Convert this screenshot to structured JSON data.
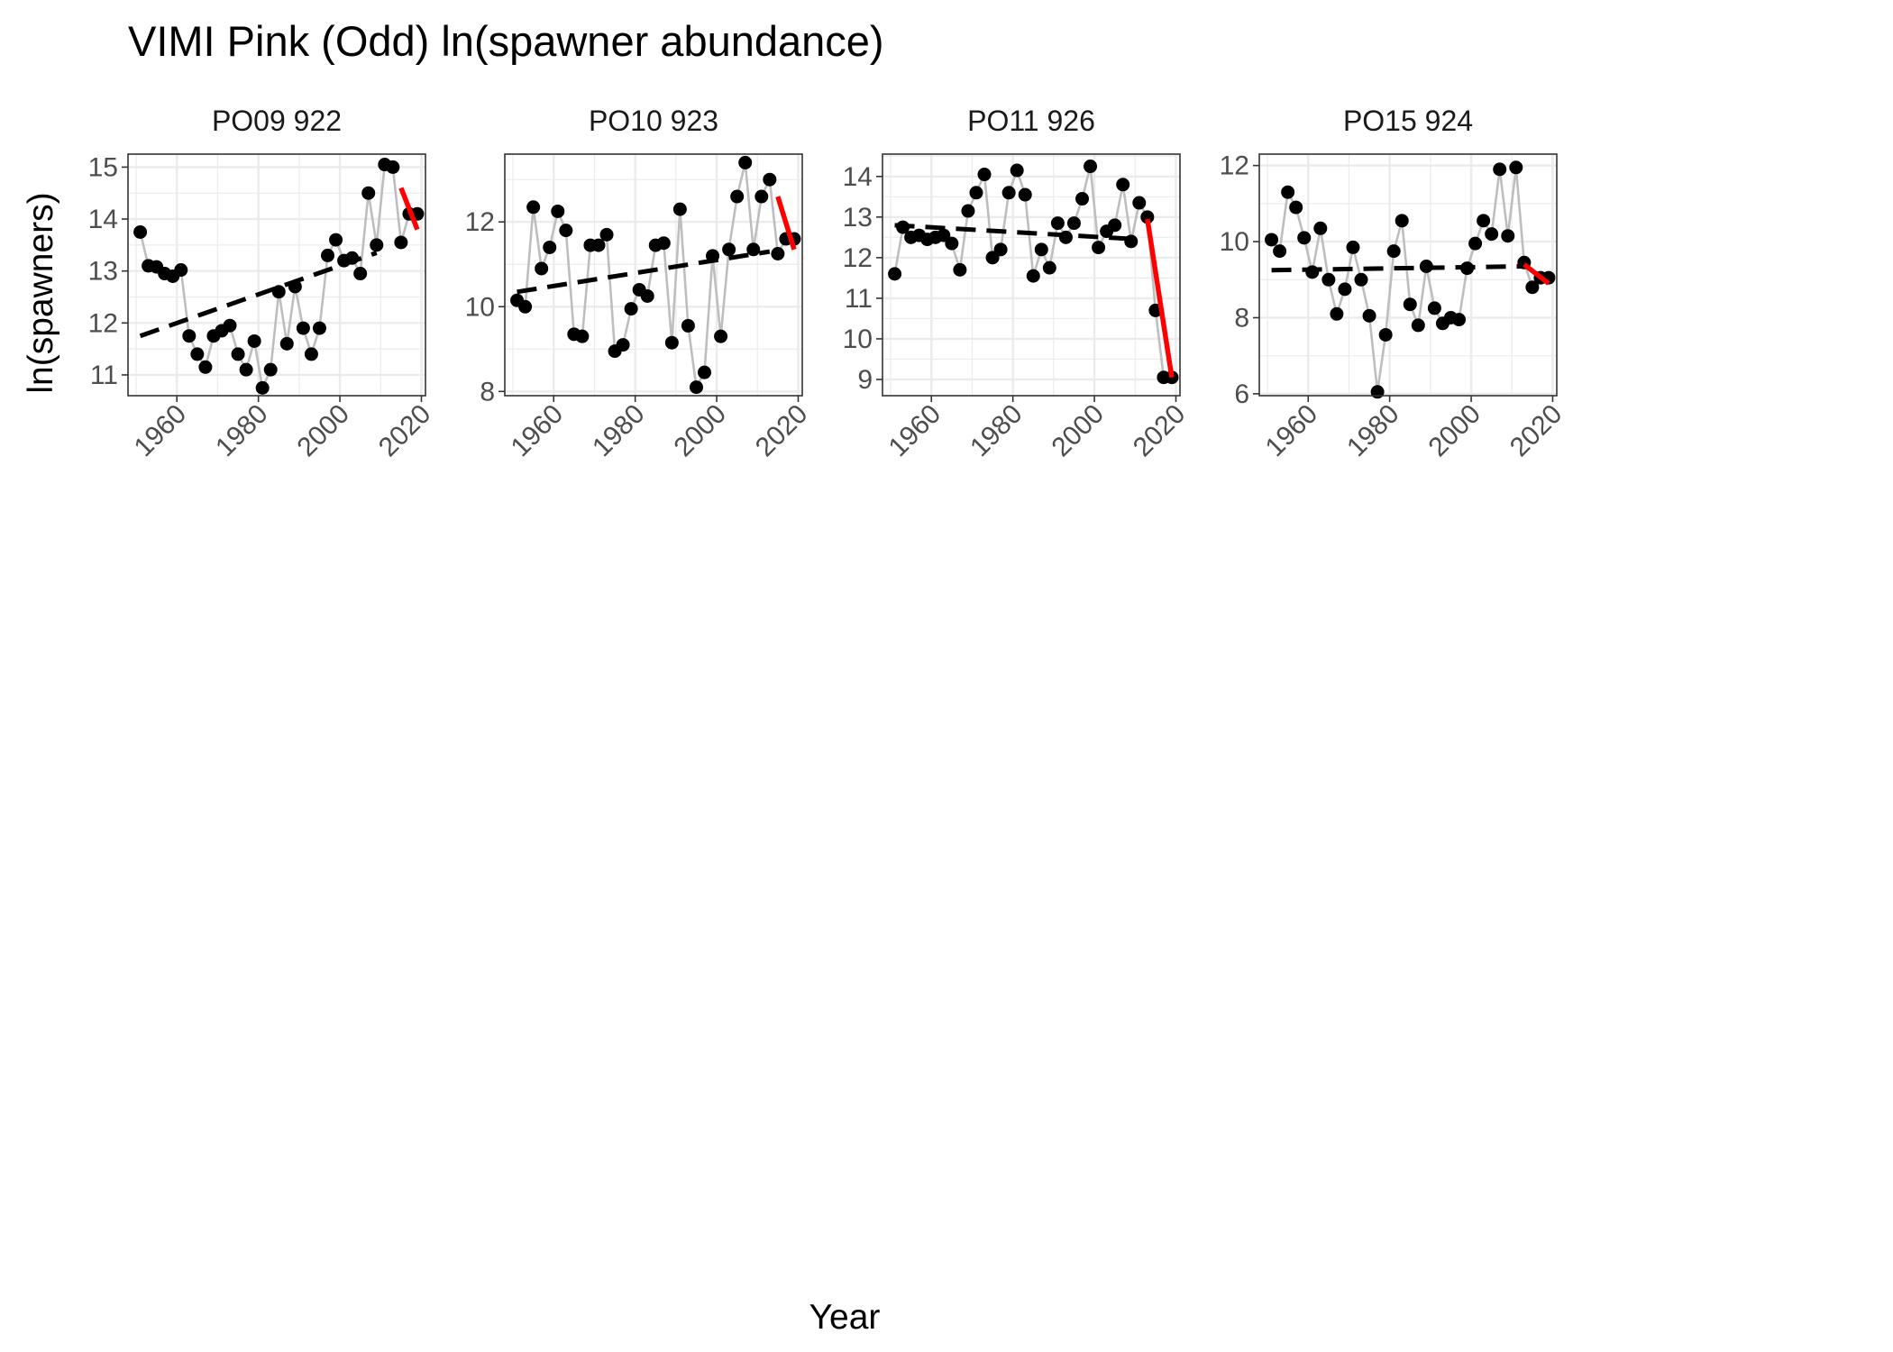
{
  "figure": {
    "title": "VIMI Pink (Odd) ln(spawner abundance)",
    "xlabel": "Year",
    "ylabel": "ln(spawners)"
  },
  "colors": {
    "points": "#000000",
    "connector": "#bebebe",
    "trend_long": "#000000",
    "trend_recent": "#ff0000",
    "grid": "#ebebeb",
    "panel_border": "#333333"
  },
  "chart_data": [
    {
      "type": "line",
      "panel": "PO09 922",
      "xlim": [
        1948,
        2021
      ],
      "ylim": [
        10.6,
        15.25
      ],
      "x_ticks": [
        1960,
        1980,
        2000,
        2020
      ],
      "y_ticks": [
        11,
        12,
        13,
        14,
        15
      ],
      "grid": true,
      "x": [
        1951,
        1953,
        1955,
        1957,
        1959,
        1961,
        1963,
        1965,
        1967,
        1969,
        1971,
        1973,
        1975,
        1977,
        1979,
        1981,
        1983,
        1985,
        1987,
        1989,
        1991,
        1993,
        1995,
        1997,
        1999,
        2001,
        2003,
        2005,
        2007,
        2009,
        2011,
        2013,
        2015,
        2017,
        2019
      ],
      "y": [
        13.75,
        13.1,
        13.08,
        12.95,
        12.9,
        13.02,
        11.75,
        11.4,
        11.15,
        11.75,
        11.85,
        11.95,
        11.4,
        11.1,
        11.65,
        10.75,
        11.1,
        12.6,
        11.6,
        12.7,
        11.9,
        11.4,
        11.9,
        13.3,
        13.6,
        13.2,
        13.25,
        12.95,
        14.5,
        13.5,
        15.05,
        15.0,
        13.55,
        14.1,
        14.1
      ],
      "trend_long": {
        "x": [
          1951,
          2009
        ],
        "y": [
          11.75,
          13.35
        ]
      },
      "trend_recent": {
        "x": [
          2015,
          2019
        ],
        "y": [
          14.6,
          13.8
        ]
      }
    },
    {
      "type": "line",
      "panel": "PO10 923",
      "xlim": [
        1948,
        2021
      ],
      "ylim": [
        7.9,
        13.6
      ],
      "x_ticks": [
        1960,
        1980,
        2000,
        2020
      ],
      "y_ticks": [
        8,
        10,
        12
      ],
      "grid": true,
      "x": [
        1951,
        1953,
        1955,
        1957,
        1959,
        1961,
        1963,
        1965,
        1967,
        1969,
        1971,
        1973,
        1975,
        1977,
        1979,
        1981,
        1983,
        1985,
        1987,
        1989,
        1991,
        1993,
        1995,
        1997,
        1999,
        2001,
        2003,
        2005,
        2007,
        2009,
        2011,
        2013,
        2015,
        2017,
        2019
      ],
      "y": [
        10.15,
        10.0,
        12.35,
        10.9,
        11.4,
        12.25,
        11.8,
        9.35,
        9.3,
        11.45,
        11.45,
        11.7,
        8.95,
        9.1,
        9.95,
        10.4,
        10.25,
        11.45,
        11.5,
        9.15,
        12.3,
        9.55,
        8.1,
        8.45,
        11.2,
        9.3,
        11.35,
        12.6,
        13.4,
        11.35,
        12.6,
        13.0,
        11.25,
        11.6,
        11.6
      ],
      "trend_long": {
        "x": [
          1951,
          2013
        ],
        "y": [
          10.35,
          11.3
        ]
      },
      "trend_recent": {
        "x": [
          2015,
          2019
        ],
        "y": [
          12.6,
          11.35
        ]
      }
    },
    {
      "type": "line",
      "panel": "PO11 926",
      "xlim": [
        1948,
        2021
      ],
      "ylim": [
        8.6,
        14.55
      ],
      "x_ticks": [
        1960,
        1980,
        2000,
        2020
      ],
      "y_ticks": [
        9,
        10,
        11,
        12,
        13,
        14
      ],
      "grid": true,
      "x": [
        1951,
        1953,
        1955,
        1957,
        1959,
        1961,
        1963,
        1965,
        1967,
        1969,
        1971,
        1973,
        1975,
        1977,
        1979,
        1981,
        1983,
        1985,
        1987,
        1989,
        1991,
        1993,
        1995,
        1997,
        1999,
        2001,
        2003,
        2005,
        2007,
        2009,
        2011,
        2013,
        2015,
        2017,
        2019
      ],
      "y": [
        11.6,
        12.75,
        12.5,
        12.55,
        12.45,
        12.5,
        12.55,
        12.35,
        11.7,
        13.15,
        13.6,
        14.05,
        12.0,
        12.2,
        13.6,
        14.15,
        13.55,
        11.55,
        12.2,
        11.75,
        12.85,
        12.5,
        12.85,
        13.45,
        14.25,
        12.25,
        12.65,
        12.8,
        13.8,
        12.4,
        13.35,
        13.0,
        10.7,
        9.05,
        9.05
      ],
      "trend_long": {
        "x": [
          1951,
          2011
        ],
        "y": [
          12.8,
          12.45
        ]
      },
      "trend_recent": {
        "x": [
          2013,
          2019
        ],
        "y": [
          12.95,
          9.05
        ]
      }
    },
    {
      "type": "line",
      "panel": "PO15 924",
      "xlim": [
        1948,
        2021
      ],
      "ylim": [
        5.95,
        12.3
      ],
      "x_ticks": [
        1960,
        1980,
        2000,
        2020
      ],
      "y_ticks": [
        6,
        8,
        10,
        12
      ],
      "grid": true,
      "x": [
        1951,
        1953,
        1955,
        1957,
        1959,
        1961,
        1963,
        1965,
        1967,
        1969,
        1971,
        1973,
        1975,
        1977,
        1979,
        1981,
        1983,
        1985,
        1987,
        1989,
        1991,
        1993,
        1995,
        1997,
        1999,
        2001,
        2003,
        2005,
        2007,
        2009,
        2011,
        2013,
        2015,
        2017,
        2019
      ],
      "y": [
        10.05,
        9.75,
        11.3,
        10.9,
        10.1,
        9.2,
        10.35,
        9.0,
        8.1,
        8.75,
        9.85,
        9.0,
        8.05,
        6.05,
        7.55,
        9.75,
        10.55,
        8.35,
        7.8,
        9.35,
        8.25,
        7.85,
        8.0,
        7.95,
        9.3,
        9.95,
        10.55,
        10.2,
        11.9,
        10.15,
        11.95,
        9.45,
        8.8,
        9.05,
        9.05
      ],
      "trend_long": {
        "x": [
          1951,
          2013
        ],
        "y": [
          9.25,
          9.35
        ]
      },
      "trend_recent": {
        "x": [
          2013,
          2019
        ],
        "y": [
          9.4,
          8.9
        ]
      }
    }
  ]
}
